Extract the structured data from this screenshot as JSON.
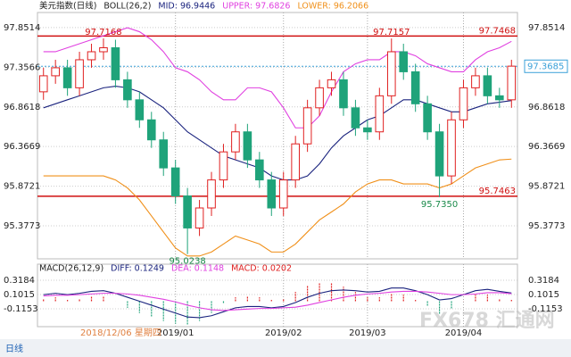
{
  "chart_data": [
    {
      "type": "candlestick",
      "legend": [
        "美元指数(日线)",
        "BOLL(26,2)",
        "MID: 96.9446",
        "UPPER: 97.6826",
        "LOWER: 96.2066"
      ],
      "categories": [
        null,
        null,
        null,
        null,
        null,
        null,
        null,
        null,
        null,
        null,
        null,
        "2019/01",
        null,
        null,
        null,
        null,
        null,
        null,
        null,
        null,
        "2019/02",
        null,
        null,
        null,
        null,
        null,
        null,
        "2019/03",
        null,
        null,
        null,
        null,
        null,
        null,
        null,
        "2019/04",
        null,
        null,
        null,
        null
      ],
      "cursor_label": "2018/12/06 星期四",
      "ylim": [
        94.965,
        98.04
      ],
      "yticks": [
        97.8514,
        97.3566,
        96.8618,
        96.3669,
        95.8721,
        95.3773
      ],
      "up_color": "#e02020",
      "down_color": "#1fa37a",
      "open": [
        97.05,
        97.25,
        97.35,
        97.1,
        97.45,
        97.55,
        97.6,
        97.2,
        96.95,
        96.7,
        96.45,
        96.1,
        95.75,
        95.35,
        95.6,
        95.95,
        96.3,
        96.55,
        96.2,
        95.95,
        95.6,
        95.95,
        96.4,
        96.85,
        97.1,
        97.2,
        96.85,
        96.6,
        96.55,
        97.0,
        97.55,
        97.3,
        96.9,
        96.55,
        96.0,
        96.7,
        97.1,
        97.25,
        97.0,
        96.95
      ],
      "high": [
        97.35,
        97.45,
        97.45,
        97.55,
        97.65,
        97.7168,
        97.7,
        97.3,
        97.05,
        96.8,
        96.55,
        96.2,
        95.85,
        95.7,
        96.05,
        96.4,
        96.65,
        96.65,
        96.3,
        96.05,
        96.05,
        96.5,
        96.95,
        97.2,
        97.3,
        97.3,
        96.95,
        96.7,
        97.1,
        97.7157,
        97.65,
        97.4,
        97.0,
        96.65,
        96.8,
        97.2,
        97.35,
        97.35,
        97.1,
        97.45
      ],
      "low": [
        96.95,
        97.15,
        97.0,
        97.0,
        97.35,
        97.45,
        97.1,
        96.85,
        96.6,
        96.35,
        96.0,
        95.65,
        95.0238,
        95.25,
        95.5,
        95.85,
        96.2,
        96.1,
        95.85,
        95.5,
        95.5,
        95.85,
        96.3,
        96.75,
        97.0,
        96.75,
        96.5,
        96.45,
        96.45,
        96.9,
        97.2,
        96.8,
        96.45,
        95.735,
        95.9,
        96.6,
        97.0,
        96.9,
        96.85,
        96.85
      ],
      "close": [
        97.25,
        97.35,
        97.1,
        97.45,
        97.55,
        97.6,
        97.2,
        96.95,
        96.7,
        96.45,
        96.1,
        95.75,
        95.35,
        95.6,
        95.95,
        96.3,
        96.55,
        96.2,
        95.95,
        95.6,
        95.95,
        96.4,
        96.85,
        97.1,
        97.2,
        96.85,
        96.6,
        96.55,
        97.0,
        97.55,
        97.3,
        96.9,
        96.55,
        96.0,
        96.7,
        97.1,
        97.25,
        97.0,
        96.95,
        97.37
      ],
      "upper": {
        "color": "#e040e0",
        "values": [
          97.55,
          97.55,
          97.6,
          97.65,
          97.7,
          97.75,
          97.8,
          97.85,
          97.8,
          97.7,
          97.55,
          97.35,
          97.3,
          97.2,
          97.05,
          96.95,
          96.95,
          97.1,
          97.1,
          97.05,
          96.85,
          96.6,
          96.6,
          96.75,
          97.05,
          97.3,
          97.4,
          97.45,
          97.45,
          97.55,
          97.55,
          97.5,
          97.4,
          97.35,
          97.3,
          97.3,
          97.45,
          97.55,
          97.6,
          97.68
        ]
      },
      "mid": {
        "color": "#1a237e",
        "values": [
          96.85,
          96.9,
          96.95,
          97.0,
          97.05,
          97.1,
          97.12,
          97.1,
          97.05,
          96.95,
          96.85,
          96.7,
          96.55,
          96.45,
          96.35,
          96.25,
          96.2,
          96.15,
          96.1,
          96.0,
          95.95,
          95.95,
          96.0,
          96.15,
          96.35,
          96.5,
          96.6,
          96.7,
          96.75,
          96.85,
          96.95,
          96.95,
          96.9,
          96.85,
          96.8,
          96.8,
          96.85,
          96.9,
          96.92,
          96.94
        ]
      },
      "lower": {
        "color": "#f0901a",
        "values": [
          96.0,
          96.0,
          96.0,
          96.0,
          96.0,
          96.0,
          95.95,
          95.85,
          95.7,
          95.5,
          95.3,
          95.1,
          95.0,
          95.0,
          95.05,
          95.15,
          95.25,
          95.2,
          95.15,
          95.05,
          95.05,
          95.15,
          95.3,
          95.45,
          95.55,
          95.65,
          95.8,
          95.9,
          95.95,
          95.95,
          95.9,
          95.9,
          95.9,
          95.85,
          95.9,
          96.0,
          96.1,
          96.15,
          96.2,
          96.21
        ]
      },
      "hlines": [
        {
          "value": 97.7468,
          "label": "97.7468"
        },
        {
          "value": 95.7463,
          "label": "95.7463"
        }
      ],
      "hline_color": "#d01010",
      "price_line": {
        "value": 97.3685,
        "label": "97.3685",
        "color": "#3aa0d8"
      },
      "annotations": [
        {
          "at": 5,
          "value": 97.7168,
          "label": "97.7168",
          "color": "#d01010"
        },
        {
          "at": 12,
          "value": 95.0238,
          "label": "95.0238",
          "color": "#1a8a4a"
        },
        {
          "at": 29,
          "value": 97.7157,
          "label": "97.7157",
          "color": "#d01010"
        },
        {
          "at": 33,
          "value": 95.735,
          "label": "95.7350",
          "color": "#1a8a4a"
        }
      ]
    },
    {
      "type": "macd",
      "legend": [
        "MACD(26,12,9)",
        "DIFF: 0.1249",
        "DEA: 0.1148",
        "MACD: 0.0202"
      ],
      "ylim": [
        -0.386,
        0.562
      ],
      "yticks": [
        0.3184,
        0.1015,
        -0.1153
      ],
      "diff": {
        "color": "#1a237e",
        "values": [
          0.1,
          0.12,
          0.1,
          0.12,
          0.15,
          0.16,
          0.12,
          0.06,
          0.0,
          -0.06,
          -0.12,
          -0.18,
          -0.24,
          -0.25,
          -0.22,
          -0.16,
          -0.1,
          -0.08,
          -0.08,
          -0.1,
          -0.08,
          -0.02,
          0.06,
          0.12,
          0.16,
          0.17,
          0.16,
          0.14,
          0.15,
          0.2,
          0.2,
          0.16,
          0.1,
          0.02,
          0.04,
          0.1,
          0.16,
          0.18,
          0.15,
          0.1249
        ]
      },
      "dea": {
        "color": "#e040e0",
        "values": [
          0.08,
          0.09,
          0.09,
          0.1,
          0.11,
          0.12,
          0.12,
          0.11,
          0.09,
          0.06,
          0.03,
          -0.01,
          -0.06,
          -0.1,
          -0.13,
          -0.14,
          -0.13,
          -0.12,
          -0.11,
          -0.11,
          -0.1,
          -0.09,
          -0.06,
          -0.02,
          0.02,
          0.06,
          0.09,
          0.11,
          0.12,
          0.14,
          0.15,
          0.15,
          0.14,
          0.12,
          0.1,
          0.1,
          0.11,
          0.13,
          0.13,
          0.1148
        ]
      },
      "macd": {
        "up_color": "#e02020",
        "down_color": "#1fa37a",
        "values": [
          0.04,
          0.06,
          0.02,
          0.04,
          0.08,
          0.08,
          0.0,
          -0.1,
          -0.18,
          -0.24,
          -0.3,
          -0.34,
          -0.36,
          -0.3,
          -0.18,
          -0.04,
          0.06,
          0.08,
          0.06,
          0.02,
          0.04,
          0.14,
          0.24,
          0.28,
          0.28,
          0.22,
          0.14,
          0.06,
          0.06,
          0.12,
          0.1,
          0.02,
          -0.08,
          -0.2,
          -0.12,
          0.0,
          0.1,
          0.1,
          0.04,
          0.0202
        ]
      }
    }
  ],
  "period_tab": "日线",
  "watermark": "FX678 汇通网"
}
